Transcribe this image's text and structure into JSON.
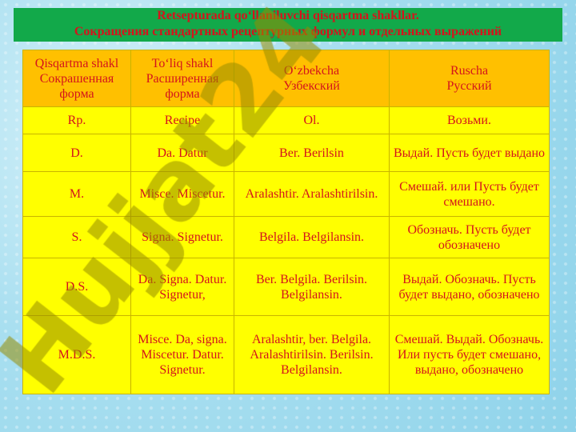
{
  "title": {
    "line1": "Retsepturada qo‘llaniluvchi qisqartma shakllar.",
    "line2": "Сокращения стандартных рецептурных формул и отдельных выражений"
  },
  "table": {
    "headers": [
      [
        "Qisqartma shakl",
        "Сокрашенная",
        "форма"
      ],
      [
        "To‘liq shakl",
        "Расширенная",
        "форма"
      ],
      [
        "O‘zbekcha",
        "Узбекский"
      ],
      [
        "Ruscha",
        "Русский"
      ]
    ],
    "rows": [
      [
        "Rp.",
        "Recipe",
        "Ol.",
        "Возьми."
      ],
      [
        "D.",
        "Da. Datur",
        "Ber. Berilsin",
        "Выдай. Пусть будет выдано"
      ],
      [
        "M.",
        "Misce. Miscetur.",
        "Aralashtir. Aralashtirilsin.",
        "Смешай. или Пусть будет смешано."
      ],
      [
        "S.",
        "Signa. Signetur.",
        "Belgila. Belgilansin.",
        "Обозначь. Пусть будет обозначено"
      ],
      [
        "D.S.",
        "Da. Signa. Datur. Signetur,",
        "Ber. Belgila. Berilsin. Belgilansin.",
        "Выдай. Обозначь. Пусть будет выдано, обозначено"
      ],
      [
        "M.D.S.",
        "Misce. Da, signa. Miscetur. Datur. Signetur.",
        "Aralashtir, ber. Belgila. Aralashtirilsin. Berilsin. Belgilansin.",
        "Смешай. Выдай. Обозначь. Или пусть будет смешано, выдано, обозначено"
      ]
    ]
  },
  "watermark": "Hujjat24",
  "colors": {
    "banner": "#12a94a",
    "header_row": "#ffc000",
    "body_row": "#ffff00",
    "text": "#d4141c"
  }
}
